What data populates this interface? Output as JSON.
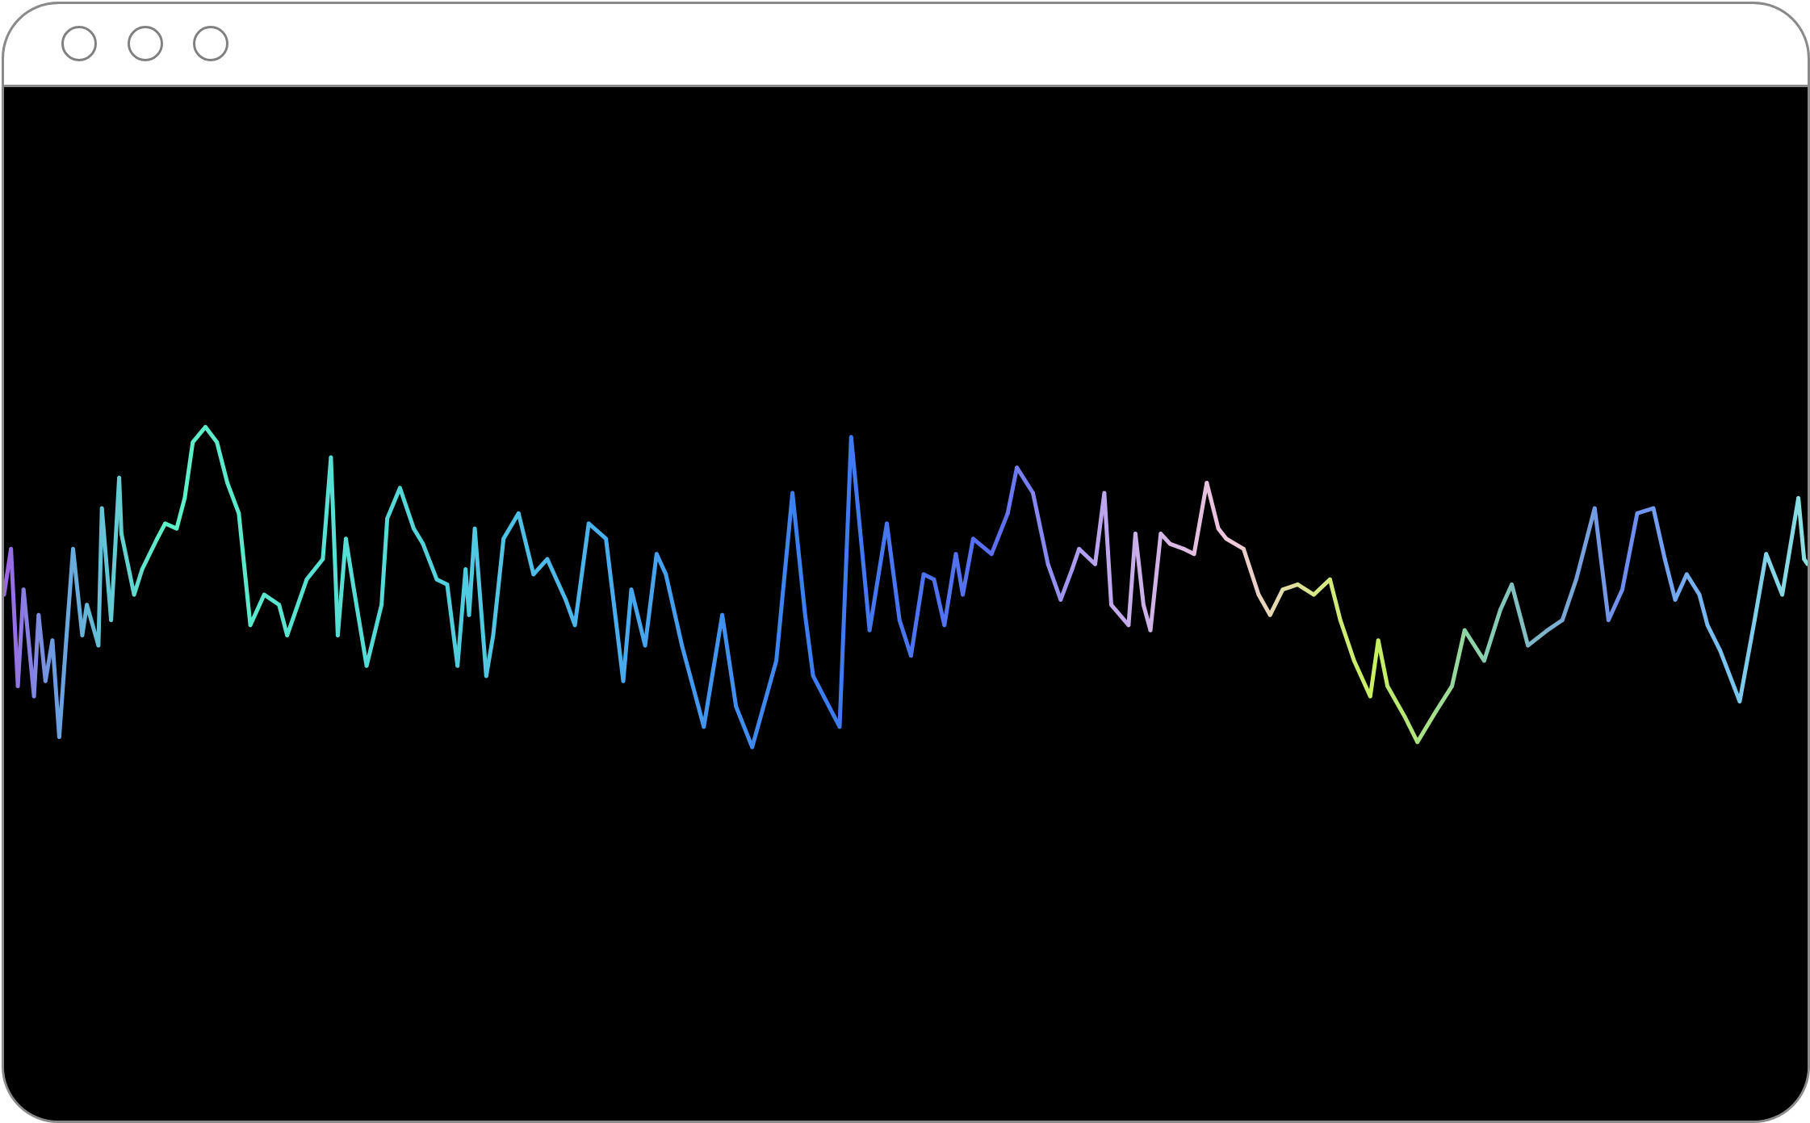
{
  "window": {
    "controls": [
      "close",
      "minimize",
      "maximize"
    ]
  },
  "colors": {
    "background": "#000000",
    "titlebar": "#ffffff",
    "frame": "#8a8a8a"
  },
  "waveform": {
    "stroke_width": 5,
    "palette": [
      "#a064e6",
      "#6aa0e0",
      "#5ef0c8",
      "#54d8d8",
      "#4ab0ee",
      "#3a7cf0",
      "#5a6ef0",
      "#b4a0f0",
      "#f0c8dc",
      "#d6e884",
      "#c8f060",
      "#88d0b0",
      "#6e8cf0",
      "#7ac8f0",
      "#8ae0e0"
    ],
    "samples": [
      [
        0,
        0.43
      ],
      [
        6,
        0.52
      ],
      [
        12,
        0.25
      ],
      [
        17,
        0.44
      ],
      [
        26,
        0.23
      ],
      [
        30,
        0.39
      ],
      [
        36,
        0.26
      ],
      [
        42,
        0.34
      ],
      [
        48,
        0.15
      ],
      [
        54,
        0.34
      ],
      [
        60,
        0.52
      ],
      [
        68,
        0.35
      ],
      [
        72,
        0.41
      ],
      [
        82,
        0.33
      ],
      [
        85,
        0.6
      ],
      [
        93,
        0.38
      ],
      [
        100,
        0.66
      ],
      [
        102,
        0.55
      ],
      [
        113,
        0.43
      ],
      [
        120,
        0.48
      ],
      [
        133,
        0.54
      ],
      [
        140,
        0.57
      ],
      [
        150,
        0.56
      ],
      [
        157,
        0.62
      ],
      [
        164,
        0.73
      ],
      [
        175,
        0.76
      ],
      [
        185,
        0.73
      ],
      [
        194,
        0.65
      ],
      [
        204,
        0.59
      ],
      [
        214,
        0.37
      ],
      [
        226,
        0.43
      ],
      [
        239,
        0.41
      ],
      [
        246,
        0.35
      ],
      [
        263,
        0.46
      ],
      [
        277,
        0.5
      ],
      [
        284,
        0.7
      ],
      [
        290,
        0.35
      ],
      [
        297,
        0.54
      ],
      [
        304,
        0.44
      ],
      [
        315,
        0.29
      ],
      [
        328,
        0.41
      ],
      [
        333,
        0.58
      ],
      [
        344,
        0.64
      ],
      [
        356,
        0.56
      ],
      [
        364,
        0.53
      ],
      [
        376,
        0.46
      ],
      [
        385,
        0.45
      ],
      [
        394,
        0.29
      ],
      [
        401,
        0.48
      ],
      [
        404,
        0.39
      ],
      [
        409,
        0.56
      ],
      [
        419,
        0.27
      ],
      [
        425,
        0.35
      ],
      [
        434,
        0.54
      ],
      [
        447,
        0.59
      ],
      [
        460,
        0.47
      ],
      [
        472,
        0.5
      ],
      [
        488,
        0.42
      ],
      [
        496,
        0.37
      ],
      [
        508,
        0.57
      ],
      [
        523,
        0.54
      ],
      [
        538,
        0.26
      ],
      [
        545,
        0.44
      ],
      [
        557,
        0.33
      ],
      [
        567,
        0.51
      ],
      [
        575,
        0.47
      ],
      [
        589,
        0.33
      ],
      [
        608,
        0.17
      ],
      [
        624,
        0.39
      ],
      [
        636,
        0.21
      ],
      [
        650,
        0.13
      ],
      [
        671,
        0.3
      ],
      [
        685,
        0.63
      ],
      [
        696,
        0.39
      ],
      [
        703,
        0.27
      ],
      [
        726,
        0.17
      ],
      [
        736,
        0.74
      ],
      [
        747,
        0.48
      ],
      [
        752,
        0.36
      ],
      [
        767,
        0.57
      ],
      [
        778,
        0.38
      ],
      [
        788,
        0.31
      ],
      [
        799,
        0.47
      ],
      [
        808,
        0.46
      ],
      [
        817,
        0.37
      ],
      [
        827,
        0.51
      ],
      [
        833,
        0.43
      ],
      [
        842,
        0.54
      ],
      [
        858,
        0.51
      ],
      [
        872,
        0.59
      ],
      [
        880,
        0.68
      ],
      [
        894,
        0.63
      ],
      [
        907,
        0.49
      ],
      [
        918,
        0.42
      ],
      [
        928,
        0.48
      ],
      [
        934,
        0.52
      ],
      [
        948,
        0.49
      ],
      [
        956,
        0.63
      ],
      [
        962,
        0.41
      ],
      [
        977,
        0.37
      ],
      [
        983,
        0.55
      ],
      [
        990,
        0.41
      ],
      [
        996,
        0.36
      ],
      [
        1005,
        0.55
      ],
      [
        1013,
        0.53
      ],
      [
        1025,
        0.52
      ],
      [
        1034,
        0.51
      ],
      [
        1045,
        0.65
      ],
      [
        1055,
        0.56
      ],
      [
        1062,
        0.54
      ],
      [
        1077,
        0.52
      ],
      [
        1090,
        0.43
      ],
      [
        1100,
        0.39
      ],
      [
        1111,
        0.44
      ],
      [
        1124,
        0.45
      ],
      [
        1138,
        0.43
      ],
      [
        1152,
        0.46
      ],
      [
        1161,
        0.38
      ],
      [
        1173,
        0.3
      ],
      [
        1187,
        0.23
      ],
      [
        1194,
        0.34
      ],
      [
        1202,
        0.25
      ],
      [
        1217,
        0.19
      ],
      [
        1228,
        0.14
      ],
      [
        1244,
        0.2
      ],
      [
        1258,
        0.25
      ],
      [
        1269,
        0.36
      ],
      [
        1286,
        0.3
      ],
      [
        1300,
        0.4
      ],
      [
        1310,
        0.45
      ],
      [
        1324,
        0.33
      ],
      [
        1341,
        0.36
      ],
      [
        1354,
        0.38
      ],
      [
        1366,
        0.46
      ],
      [
        1382,
        0.6
      ],
      [
        1394,
        0.38
      ],
      [
        1406,
        0.44
      ],
      [
        1419,
        0.59
      ],
      [
        1433,
        0.6
      ],
      [
        1443,
        0.5
      ],
      [
        1452,
        0.42
      ],
      [
        1462,
        0.47
      ],
      [
        1473,
        0.43
      ],
      [
        1480,
        0.37
      ],
      [
        1491,
        0.32
      ],
      [
        1508,
        0.22
      ],
      [
        1521,
        0.38
      ],
      [
        1531,
        0.51
      ],
      [
        1545,
        0.43
      ],
      [
        1559,
        0.62
      ],
      [
        1564,
        0.5
      ],
      [
        1567,
        0.49
      ]
    ]
  }
}
